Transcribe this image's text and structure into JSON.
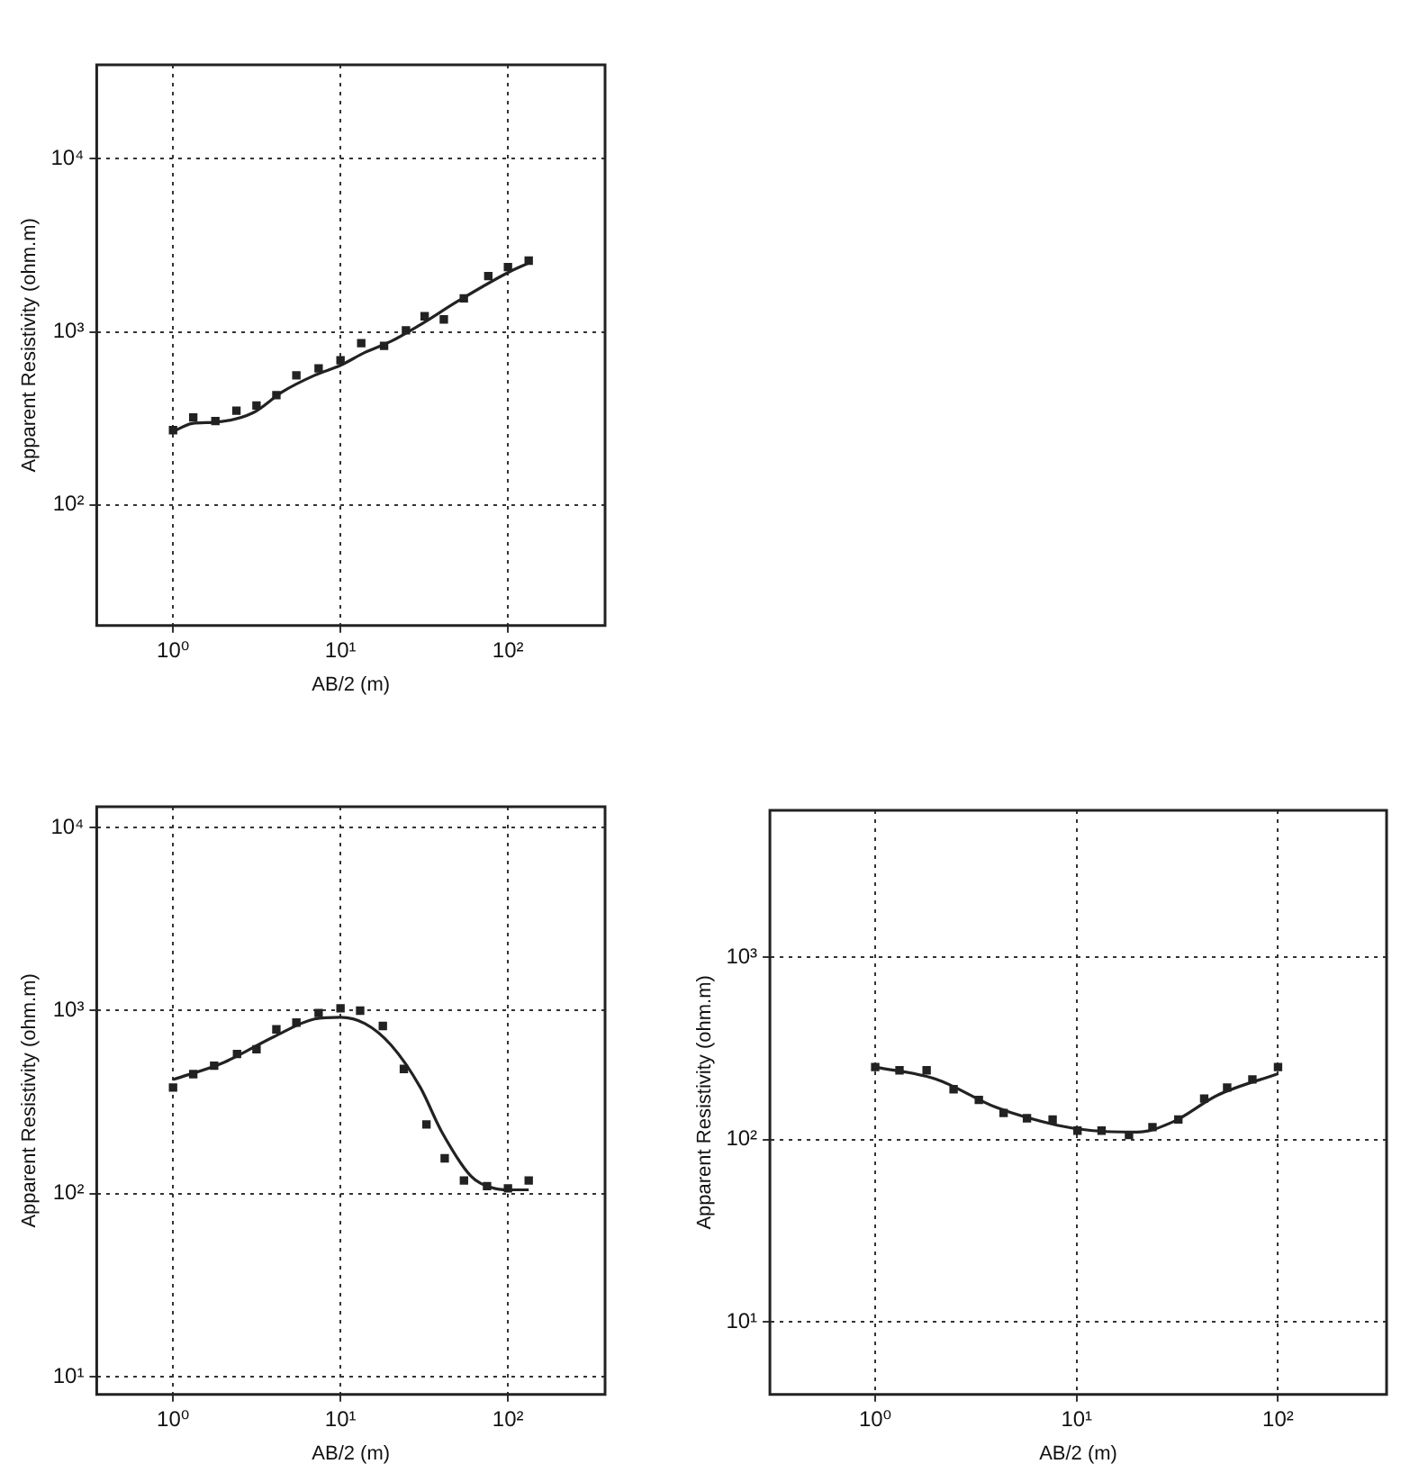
{
  "chart_data": [
    {
      "type": "scatter",
      "xlabel": "AB/2 (m)",
      "ylabel": "Apparent Resistivity (ohm.m)",
      "log": "xy",
      "grid": true,
      "xlim": [
        0.35,
        380
      ],
      "ylim": [
        20,
        35000
      ],
      "xticks": [
        {
          "value": 1,
          "label": "10⁰"
        },
        {
          "value": 10,
          "label": "10¹"
        },
        {
          "value": 100,
          "label": "10²"
        }
      ],
      "yticks": [
        {
          "value": 100,
          "label": "10²"
        },
        {
          "value": 1000,
          "label": "10³"
        },
        {
          "value": 10000,
          "label": "10⁴"
        }
      ],
      "series": [
        {
          "type": "scatter",
          "marker": "square",
          "color": "#222222",
          "x": [
            1,
            1.32,
            1.79,
            2.39,
            3.15,
            4.14,
            5.45,
            7.4,
            10,
            13.3,
            18.2,
            24.6,
            31.8,
            41.4,
            54.5,
            76.3,
            100,
            133
          ],
          "values": [
            270,
            320,
            305,
            350,
            375,
            430,
            560,
            615,
            685,
            860,
            830,
            1020,
            1230,
            1180,
            1560,
            2100,
            2370,
            2580
          ]
        },
        {
          "type": "line",
          "marker": "none",
          "line_style": "solid",
          "color": "#222222",
          "x": [
            1,
            1.3,
            1.8,
            3,
            4.5,
            7,
            10,
            14,
            20,
            30,
            50,
            100,
            133
          ],
          "values": [
            265,
            295,
            300,
            340,
            450,
            560,
            640,
            760,
            880,
            1100,
            1500,
            2200,
            2500
          ]
        }
      ]
    },
    {
      "type": "scatter",
      "xlabel": "AB/2 (m)",
      "ylabel": "Apparent Resistivity (ohm.m)",
      "log": "xy",
      "grid": true,
      "xlim": [
        0.35,
        380
      ],
      "ylim": [
        8,
        13000
      ],
      "xticks": [
        {
          "value": 1,
          "label": "10⁰"
        },
        {
          "value": 10,
          "label": "10¹"
        },
        {
          "value": 100,
          "label": "10²"
        }
      ],
      "yticks": [
        {
          "value": 10,
          "label": "10¹"
        },
        {
          "value": 100,
          "label": "10²"
        },
        {
          "value": 1000,
          "label": "10³"
        },
        {
          "value": 10000,
          "label": "10⁴"
        }
      ],
      "series": [
        {
          "type": "scatter",
          "marker": "square",
          "color": "#222222",
          "x": [
            1,
            1.32,
            1.76,
            2.41,
            3.15,
            4.14,
            5.45,
            7.4,
            10,
            13.1,
            17.9,
            23.9,
            32.6,
            41.9,
            54.6,
            75,
            100,
            133
          ],
          "values": [
            380,
            450,
            500,
            580,
            615,
            790,
            860,
            970,
            1030,
            1000,
            825,
            480,
            239,
            156,
            118,
            110,
            107,
            118
          ]
        },
        {
          "type": "line",
          "marker": "none",
          "line_style": "solid",
          "color": "#222222",
          "x": [
            1,
            2,
            4,
            7,
            10,
            14,
            20,
            30,
            40,
            60,
            80,
            100,
            133
          ],
          "values": [
            420,
            520,
            720,
            900,
            920,
            850,
            650,
            380,
            220,
            125,
            108,
            105,
            105
          ]
        }
      ]
    },
    {
      "type": "scatter",
      "xlabel": "AB/2 (m)",
      "ylabel": "Apparent Resistivity (ohm.m)",
      "log": "xy",
      "grid": true,
      "xlim": [
        0.3,
        346
      ],
      "ylim": [
        4,
        6400
      ],
      "xticks": [
        {
          "value": 1,
          "label": "10⁰"
        },
        {
          "value": 10,
          "label": "10¹"
        },
        {
          "value": 100,
          "label": "10²"
        }
      ],
      "yticks": [
        {
          "value": 10,
          "label": "10¹"
        },
        {
          "value": 100,
          "label": "10²"
        },
        {
          "value": 1000,
          "label": "10³"
        }
      ],
      "series": [
        {
          "type": "scatter",
          "marker": "square",
          "color": "#222222",
          "x": [
            1,
            1.32,
            1.8,
            2.45,
            3.27,
            4.34,
            5.67,
            7.6,
            10.1,
            13.3,
            18.2,
            23.8,
            32,
            43,
            55.9,
            74.6,
            100
          ],
          "values": [
            250,
            240,
            240,
            189,
            165,
            140,
            131,
            129,
            112,
            112,
            106,
            117,
            129,
            168,
            193,
            214,
            250
          ]
        },
        {
          "type": "line",
          "marker": "none",
          "line_style": "solid",
          "color": "#222222",
          "x": [
            1,
            2,
            4,
            8,
            12,
            20,
            30,
            50,
            100
          ],
          "values": [
            250,
            215,
            150,
            120,
            112,
            110,
            125,
            175,
            230
          ]
        }
      ]
    }
  ]
}
